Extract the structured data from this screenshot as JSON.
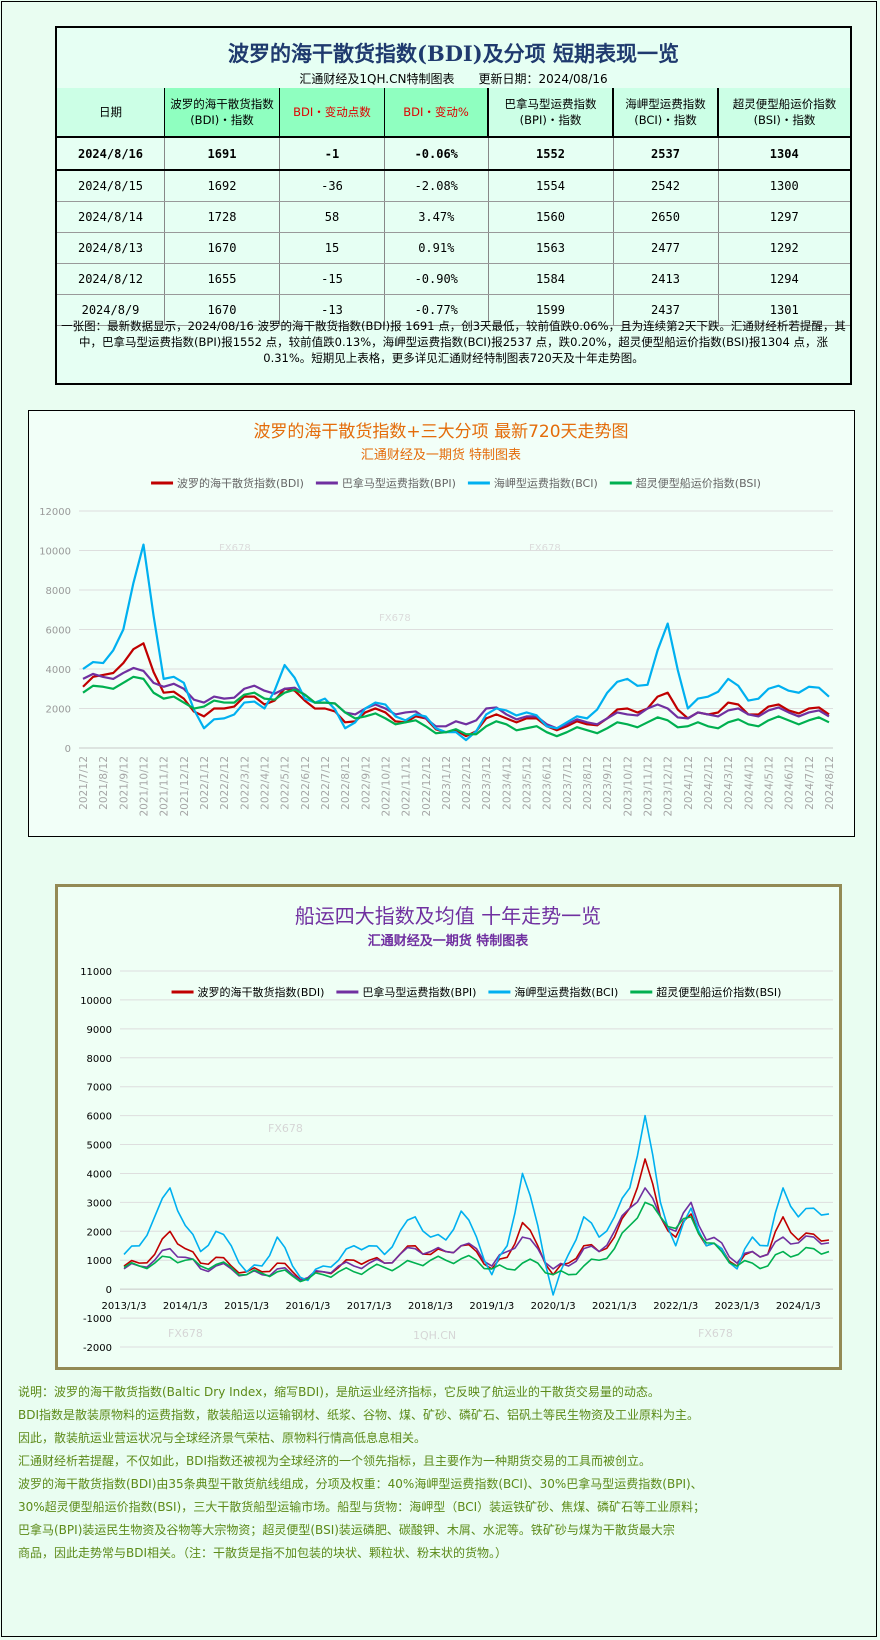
{
  "table": {
    "title": "波罗的海干散货指数(BDI)及分项 短期表现一览",
    "subtitle": "汇通财经及1QH.CN特制图表　　更新日期：2024/08/16",
    "headers": [
      "日期",
      "波罗的海干散货指数(BDI)・指数",
      "BDI・变动点数",
      "BDI・变动%",
      "巴拿马型运费指数(BPI)・指数",
      "海岬型运费指数(BCI)・指数",
      "超灵便型船运价指数(BSI)・指数"
    ],
    "rows": [
      [
        "2024/8/16",
        "1691",
        "-1",
        "-0.06%",
        "1552",
        "2537",
        "1304"
      ],
      [
        "2024/8/15",
        "1692",
        "-36",
        "-2.08%",
        "1554",
        "2542",
        "1300"
      ],
      [
        "2024/8/14",
        "1728",
        "58",
        "3.47%",
        "1560",
        "2650",
        "1297"
      ],
      [
        "2024/8/13",
        "1670",
        "15",
        "0.91%",
        "1563",
        "2477",
        "1292"
      ],
      [
        "2024/8/12",
        "1655",
        "-15",
        "-0.90%",
        "1584",
        "2413",
        "1294"
      ],
      [
        "2024/8/9",
        "1670",
        "-13",
        "-0.77%",
        "1599",
        "2437",
        "1301"
      ]
    ],
    "note": "一张图：最新数据显示，2024/08/16 波罗的海干散货指数(BDI)报 1691 点，创3天最低，较前值跌0.06%，且为连续第2天下跌。汇通财经析若提醒，其中，巴拿马型运费指数(BPI)报1552 点，较前值跌0.13%，海岬型运费指数(BCI)报2537 点，跌0.20%，超灵便型船运价指数(BSI)报1304 点，涨0.31%。短期见上表格，更多详见汇通财经特制图表720天及十年走势图。"
  },
  "colors": {
    "BDI": "#c00000",
    "BPI": "#7030a0",
    "BCI": "#00b0f0",
    "BSI": "#00b050",
    "title1": "#e46c0a",
    "title2": "#7030a0"
  },
  "chart_data": [
    {
      "type": "line",
      "title": "波罗的海干散货指数+三大分项  最新720天走势图",
      "subtitle": "汇通财经及一期货  特制图表",
      "legend_position": "top",
      "grid": true,
      "ylim": [
        0,
        12000
      ],
      "yticks": [
        "0",
        "2000",
        "4000",
        "6000",
        "8000",
        "10000",
        "12000"
      ],
      "x": [
        "2021/7/12",
        "2021/8/12",
        "2021/9/12",
        "2021/10/12",
        "2021/11/12",
        "2021/12/12",
        "2022/1/12",
        "2022/2/12",
        "2022/3/12",
        "2022/4/12",
        "2022/5/12",
        "2022/6/12",
        "2022/7/12",
        "2022/8/12",
        "2022/9/12",
        "2022/10/12",
        "2022/11/12",
        "2022/12/12",
        "2023/1/12",
        "2023/2/12",
        "2023/3/12",
        "2023/4/12",
        "2023/5/12",
        "2023/6/12",
        "2023/7/12",
        "2023/8/12",
        "2023/9/12",
        "2023/10/12",
        "2023/11/12",
        "2023/12/12",
        "2024/1/12",
        "2024/2/12",
        "2024/3/12",
        "2024/4/12",
        "2024/5/12",
        "2024/6/12",
        "2024/7/12",
        "2024/8/12"
      ],
      "series": [
        {
          "name": "波罗的海干散货指数(BDI)",
          "key": "BDI",
          "values": [
            3100,
            3700,
            4300,
            5300,
            2800,
            2500,
            1600,
            2000,
            2600,
            2200,
            3000,
            2400,
            2000,
            1300,
            1800,
            1800,
            1300,
            1500,
            800,
            600,
            1500,
            1500,
            1500,
            1100,
            1100,
            1200,
            1500,
            2000,
            2000,
            2800,
            1500,
            1700,
            2300,
            1700,
            2100,
            1900,
            2000,
            1700
          ]
        },
        {
          "name": "巴拿马型运费指数(BPI)",
          "key": "BPI",
          "values": [
            3500,
            3600,
            3800,
            3900,
            3100,
            3000,
            2300,
            2500,
            3000,
            2900,
            3000,
            2700,
            2300,
            1800,
            2000,
            2000,
            1800,
            1500,
            1100,
            1200,
            2000,
            1700,
            1600,
            1200,
            1200,
            1300,
            1500,
            1700,
            2000,
            2000,
            1500,
            1700,
            1900,
            1700,
            1900,
            1800,
            1800,
            1600
          ]
        },
        {
          "name": "海岬型运费指数(BCI)",
          "key": "BCI",
          "values": [
            4000,
            4300,
            6000,
            10300,
            3500,
            3300,
            1000,
            1500,
            2300,
            2000,
            4200,
            2500,
            2500,
            1000,
            2000,
            2200,
            1400,
            1600,
            800,
            400,
            1700,
            1900,
            1800,
            1100,
            1300,
            1500,
            2800,
            3500,
            3200,
            6300,
            2000,
            2600,
            3500,
            2400,
            3000,
            2900,
            3100,
            2600
          ]
        },
        {
          "name": "超灵便型船运价指数(BSI)",
          "key": "BSI",
          "values": [
            2800,
            3100,
            3300,
            3500,
            2500,
            2300,
            2100,
            2300,
            2700,
            2500,
            2800,
            2700,
            2300,
            1800,
            1600,
            1500,
            1300,
            1100,
            800,
            700,
            1100,
            1200,
            1000,
            800,
            800,
            900,
            1000,
            1200,
            1300,
            1400,
            1100,
            1100,
            1300,
            1200,
            1400,
            1400,
            1400,
            1300
          ]
        }
      ]
    },
    {
      "type": "line",
      "title": "船运四大指数及均值 十年走势一览",
      "subtitle": "汇通财经及一期货 特制图表",
      "legend_position": "top",
      "grid": true,
      "ylim": [
        -2000,
        11000
      ],
      "yticks": [
        "-2000",
        "-1000",
        "0",
        "1000",
        "2000",
        "3000",
        "4000",
        "5000",
        "6000",
        "7000",
        "8000",
        "9000",
        "10000",
        "11000"
      ],
      "xticks": [
        "2013/1/3",
        "2014/1/3",
        "2015/1/3",
        "2016/1/3",
        "2017/1/3",
        "2018/1/3",
        "2019/1/3",
        "2020/1/3",
        "2021/1/3",
        "2022/1/3",
        "2023/1/3",
        "2024/1/3"
      ],
      "x_interval": "quarterly from 2013/1/3",
      "series": [
        {
          "name": "波罗的海干散货指数(BDI)",
          "key": "BDI",
          "values": [
            800,
            900,
            1200,
            2000,
            1400,
            900,
            1100,
            800,
            600,
            600,
            900,
            600,
            350,
            600,
            750,
            1000,
            1000,
            900,
            1200,
            1500,
            1200,
            1300,
            1500,
            1300,
            700,
            1100,
            2300,
            1500,
            500,
            900,
            1500,
            1300,
            1800,
            2800,
            4500,
            2500,
            1800,
            2600,
            1500,
            1400,
            800,
            1300,
            1200,
            2500,
            1700,
            1900,
            1700
          ]
        },
        {
          "name": "巴拿马型运费指数(BPI)",
          "key": "BPI",
          "values": [
            700,
            800,
            1000,
            1400,
            1100,
            700,
            800,
            700,
            500,
            500,
            700,
            500,
            400,
            600,
            800,
            800,
            900,
            900,
            1200,
            1400,
            1300,
            1300,
            1500,
            1400,
            800,
            1300,
            1800,
            1400,
            700,
            800,
            1400,
            1300,
            2000,
            2800,
            3500,
            2500,
            2000,
            3000,
            1700,
            1600,
            900,
            1300,
            1200,
            1800,
            1600,
            1800,
            1600
          ]
        },
        {
          "name": "海岬型运费指数(BCI)",
          "key": "BCI",
          "values": [
            1200,
            1500,
            2500,
            3500,
            2200,
            1300,
            2000,
            1500,
            600,
            800,
            1800,
            800,
            300,
            800,
            1000,
            1500,
            1500,
            1200,
            2000,
            2500,
            1800,
            1700,
            2700,
            1800,
            500,
            1500,
            4000,
            2200,
            -200,
            1200,
            2500,
            1800,
            2500,
            3500,
            6000,
            3000,
            1500,
            2800,
            1500,
            1400,
            700,
            1800,
            1500,
            3500,
            2500,
            2800,
            2600
          ]
        },
        {
          "name": "超灵便型船运价指数(BSI)",
          "key": "BSI",
          "values": [
            750,
            800,
            900,
            1100,
            1000,
            800,
            850,
            750,
            500,
            550,
            600,
            450,
            350,
            500,
            600,
            600,
            700,
            750,
            800,
            900,
            1000,
            1000,
            1050,
            1000,
            700,
            700,
            900,
            900,
            500,
            500,
            800,
            1000,
            1400,
            2200,
            3000,
            2500,
            2100,
            2500,
            1600,
            1300,
            800,
            900,
            800,
            1300,
            1200,
            1400,
            1300
          ]
        }
      ]
    }
  ],
  "watermarks": [
    "FX678",
    "1QH.CN"
  ],
  "description": [
    "说明：波罗的海干散货指数(Baltic Dry Index，缩写BDI)，是航运业经济指标，它反映了航运业的干散货交易量的动态。",
    "BDI指数是散装原物料的运费指数，散装船运以运输钢材、纸浆、谷物、煤、矿砂、磷矿石、铝矾土等民生物资及工业原料为主。",
    "因此，散装航运业营运状况与全球经济景气荣枯、原物料行情高低息息相关。",
    "汇通财经析若提醒，不仅如此，BDI指数还被视为全球经济的一个领先指标，且主要作为一种期货交易的工具而被创立。",
    "波罗的海干散货指数(BDI)由35条典型干散货航线组成，分项及权重：40%海岬型运费指数(BCI)、30%巴拿马型运费指数(BPI)、",
    "30%超灵便型船运价指数(BSI)，三大干散货船型运输市场。船型与货物：海岬型（BCI）装运铁矿砂、焦煤、磷矿石等工业原料；",
    "巴拿马(BPI)装运民生物资及谷物等大宗物资；超灵便型(BSI)装运磷肥、碳酸钾、木屑、水泥等。铁矿砂与煤为干散货最大宗",
    "商品，因此走势常与BDI相关。（注：干散货是指不加包装的块状、颗粒状、粉末状的货物。）"
  ]
}
